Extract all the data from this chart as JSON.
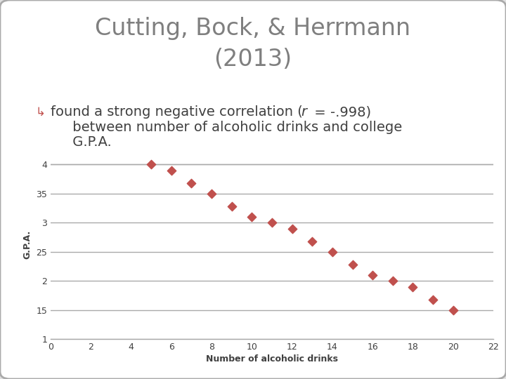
{
  "title_line1": "Cutting, Bock, & Herrmann",
  "title_line2": "(2013)",
  "title_color": "#7f7f7f",
  "title_fontsize": 24,
  "text_color": "#404040",
  "text_fontsize": 14,
  "xlabel": "Number of alcoholic drinks",
  "ylabel": "G.P.A.",
  "xlabel_fontsize": 9,
  "ylabel_fontsize": 9,
  "marker_color": "#c0504d",
  "background_color": "#ffffff",
  "grid_color": "#aaaaaa",
  "x_data": [
    5,
    6,
    7,
    8,
    9,
    10,
    11,
    12,
    13,
    14,
    15,
    16,
    17,
    18,
    19,
    20
  ],
  "y_data": [
    4.0,
    3.89,
    3.67,
    3.5,
    3.28,
    3.1,
    3.0,
    2.89,
    2.68,
    2.5,
    2.28,
    2.1,
    2.0,
    1.9,
    1.68,
    1.5
  ],
  "xlim": [
    0,
    22
  ],
  "ylim": [
    1.0,
    4.25
  ],
  "xticks": [
    0,
    2,
    4,
    6,
    8,
    10,
    12,
    14,
    16,
    18,
    20,
    22
  ],
  "yticks": [
    1.0,
    1.5,
    2.0,
    2.5,
    3.0,
    3.5,
    4.0
  ],
  "ytick_labels": [
    "1",
    "15",
    "2",
    "25",
    "3",
    "35",
    "4"
  ],
  "fig_bg_color": "#e0e0e0",
  "panel_bg_color": "#ffffff",
  "bullet_color": "#c0504d"
}
